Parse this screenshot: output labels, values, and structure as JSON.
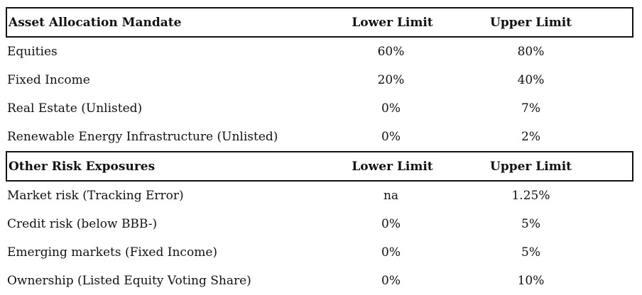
{
  "sections": [
    {
      "header": {
        "label": "Asset Allocation Mandate",
        "lower": "Lower Limit",
        "upper": "Upper Limit"
      },
      "rows": [
        {
          "label": "Equities",
          "lower": "60%",
          "upper": "80%"
        },
        {
          "label": "Fixed Income",
          "lower": "20%",
          "upper": "40%"
        },
        {
          "label": "Real Estate (Unlisted)",
          "lower": "0%",
          "upper": "7%"
        },
        {
          "label": "Renewable Energy Infrastructure (Unlisted)",
          "lower": "0%",
          "upper": "2%"
        }
      ]
    },
    {
      "header": {
        "label": "Other Risk Exposures",
        "lower": "Lower Limit",
        "upper": "Upper Limit"
      },
      "rows": [
        {
          "label": "Market risk (Tracking Error)",
          "lower": "na",
          "upper": "1.25%"
        },
        {
          "label": "Credit risk (below BBB-)",
          "lower": "0%",
          "upper": "5%"
        },
        {
          "label": "Emerging markets (Fixed Income)",
          "lower": "0%",
          "upper": "5%"
        },
        {
          "label": "Ownership (Listed Equity Voting Share)",
          "lower": "0%",
          "upper": "10%"
        }
      ]
    }
  ]
}
